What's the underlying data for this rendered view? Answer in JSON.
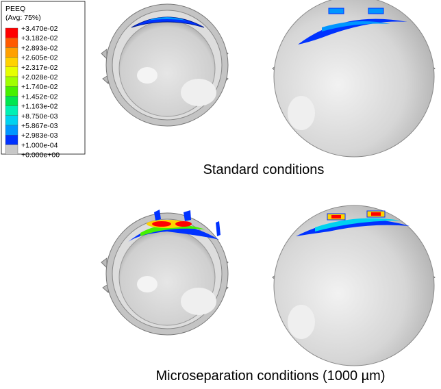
{
  "legend": {
    "title": "PEEQ",
    "subtitle": "(Avg: 75%)",
    "labels": [
      "+3.470e-02",
      "+3.182e-02",
      "+2.893e-02",
      "+2.605e-02",
      "+2.317e-02",
      "+2.028e-02",
      "+1.740e-02",
      "+1.452e-02",
      "+1.163e-02",
      "+8.750e-03",
      "+5.867e-03",
      "+2.983e-03",
      "+1.000e-04",
      "+0.000e+00"
    ],
    "colors": [
      "#ff0000",
      "#ff5a00",
      "#ffa000",
      "#ffd200",
      "#e6ff00",
      "#a0ff00",
      "#46f000",
      "#00e650",
      "#00f0b4",
      "#00d2f0",
      "#0096ff",
      "#0032ff",
      "#c8c8c8"
    ]
  },
  "captions": [
    "Standard conditions",
    "Microseparation conditions (1000 µm)"
  ]
}
